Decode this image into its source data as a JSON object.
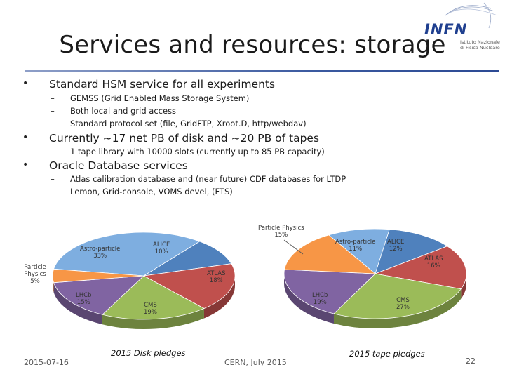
{
  "slide": {
    "title": "Services and resources: storage",
    "logo": {
      "word": "INFN",
      "sub_line1": "Istituto Nazionale",
      "sub_line2": "di Fisica Nucleare"
    },
    "bullets": [
      {
        "text": "Standard HSM service for all experiments",
        "subs": [
          "GEMSS (Grid Enabled Mass Storage System)",
          "Both local and grid access",
          "Standard protocol set (file, GridFTP, Xroot.D, http/webdav)"
        ]
      },
      {
        "text": "Currently ~17 net PB of disk and ~20 PB of tapes",
        "subs": [
          "1 tape library with 10000 slots (currently up to 85 PB capacity)"
        ]
      },
      {
        "text": "Oracle Database services",
        "subs": [
          "Atlas calibration database and (near future) CDF databases for LTDP",
          "Lemon, Grid-console, VOMS devel, (FTS)"
        ]
      }
    ],
    "footer": {
      "date": "2015-07-16",
      "venue": "CERN, July 2015",
      "page": "22"
    }
  },
  "chart_data": [
    {
      "type": "pie",
      "title": "2015 Disk pledges",
      "slices": [
        {
          "label": "ALICE",
          "pct_label": "10%",
          "value": 10,
          "color": "#4f81bd"
        },
        {
          "label": "ATLAS",
          "pct_label": "18%",
          "value": 18,
          "color": "#c0504d"
        },
        {
          "label": "CMS",
          "pct_label": "19%",
          "value": 19,
          "color": "#9bbb59"
        },
        {
          "label": "LHCb",
          "pct_label": "15%",
          "value": 15,
          "color": "#8064a2"
        },
        {
          "label": "Particle Physics",
          "pct_label": "5%",
          "value": 5,
          "color": "#f79646"
        },
        {
          "label": "Astro-particle",
          "pct_label": "33%",
          "value": 33,
          "color": "#7eaee0"
        }
      ]
    },
    {
      "type": "pie",
      "title": "2015 tape pledges",
      "slices": [
        {
          "label": "ALICE",
          "pct_label": "12%",
          "value": 12,
          "color": "#4f81bd"
        },
        {
          "label": "ATLAS",
          "pct_label": "16%",
          "value": 16,
          "color": "#c0504d"
        },
        {
          "label": "CMS",
          "pct_label": "27%",
          "value": 27,
          "color": "#9bbb59"
        },
        {
          "label": "LHCb",
          "pct_label": "19%",
          "value": 19,
          "color": "#8064a2"
        },
        {
          "label": "Particle Physics",
          "pct_label": "15%",
          "value": 15,
          "color": "#f79646"
        },
        {
          "label": "Astro-particle",
          "pct_label": "11%",
          "value": 11,
          "color": "#7eaee0"
        }
      ]
    }
  ]
}
